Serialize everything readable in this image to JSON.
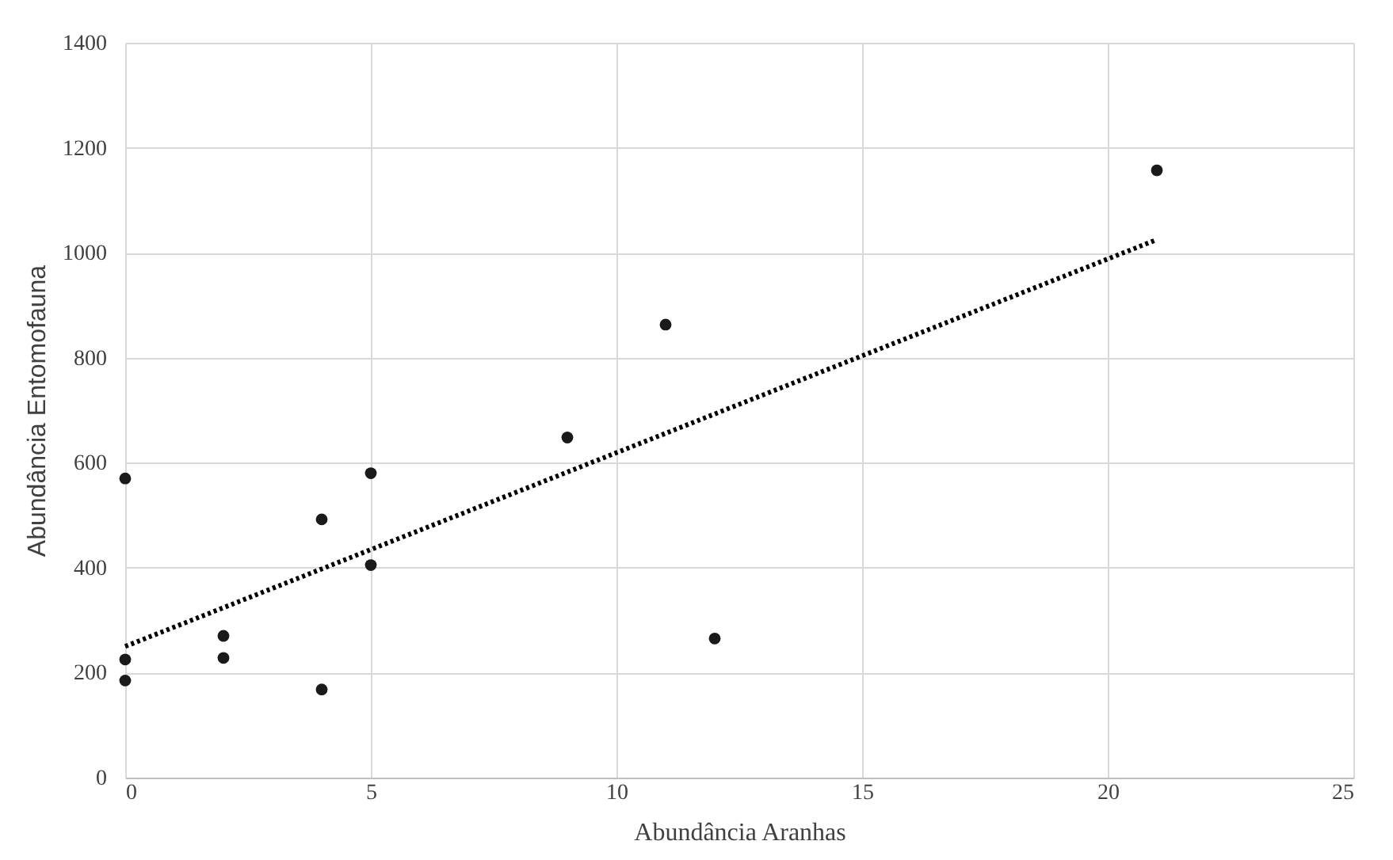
{
  "chart_data": {
    "type": "scatter",
    "xlabel": "Abundância Aranhas",
    "ylabel": "Abundância Entomofauna",
    "xlim": [
      0,
      25
    ],
    "xticks": [
      0,
      5,
      10,
      15,
      20,
      25
    ],
    "ylim": [
      0,
      1400
    ],
    "yticks": [
      0,
      200,
      400,
      600,
      800,
      1000,
      1200,
      1400
    ],
    "grid": true,
    "marker": "circle",
    "series": [
      {
        "color": "#1a1a1a",
        "x": [
          0,
          0,
          0,
          2,
          2,
          4,
          4,
          5,
          5,
          9,
          11,
          12,
          21
        ],
        "values": [
          570,
          225,
          185,
          270,
          228,
          492,
          168,
          580,
          405,
          648,
          863,
          265,
          1157
        ]
      },
      {
        "type": "line",
        "color": "#000000",
        "line_style": "dotted",
        "marker": "none",
        "x": [
          0,
          21
        ],
        "values": [
          250,
          1025
        ]
      }
    ]
  }
}
